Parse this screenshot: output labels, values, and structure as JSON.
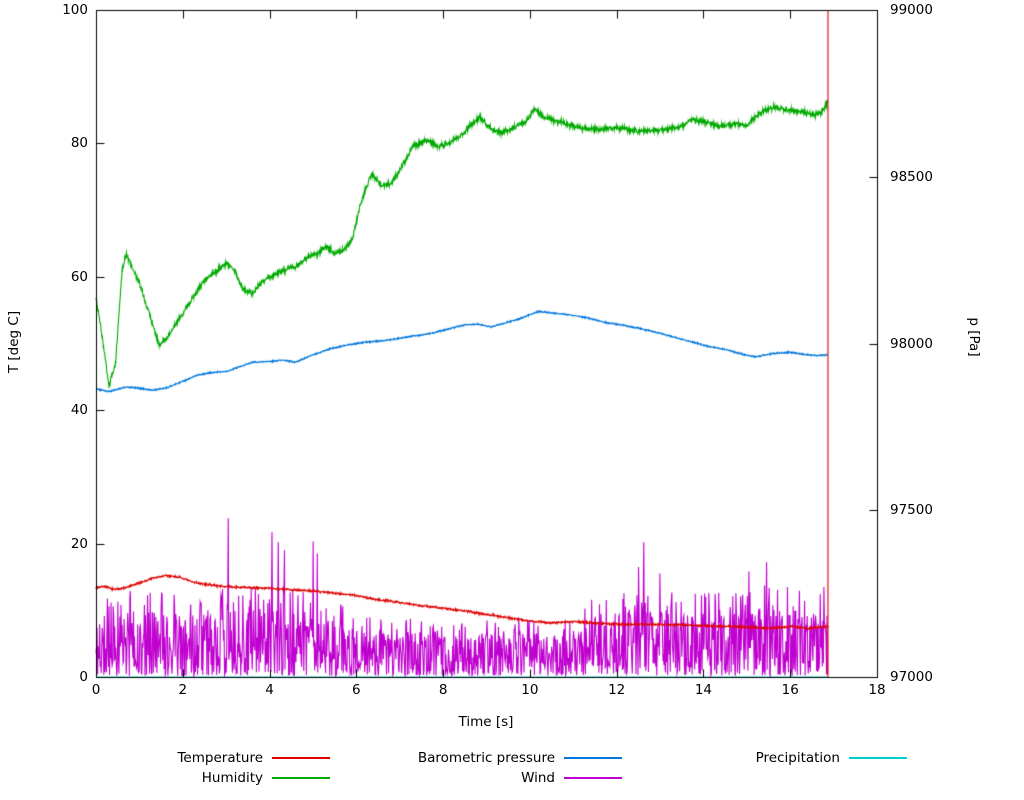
{
  "chart_data": {
    "type": "line",
    "title": "",
    "xlabel": "Time [s]",
    "ylabel": "T [deg C]",
    "y2label": "p [Pa]",
    "xlim": [
      0,
      18
    ],
    "ylim": [
      0,
      100
    ],
    "y2lim": [
      97000,
      99000
    ],
    "xticks": [
      0,
      2,
      4,
      6,
      8,
      10,
      12,
      14,
      16,
      18
    ],
    "yticks": [
      0,
      20,
      40,
      60,
      80,
      100
    ],
    "y2ticks": [
      97000,
      97500,
      98000,
      98500,
      99000
    ],
    "grid": false,
    "legend_position": "below",
    "t_end": 16.87,
    "series": [
      {
        "name": "Precipitation",
        "color": "#00cccc",
        "axis": "y",
        "kind": "anchored",
        "noise": 0,
        "seed": 1,
        "anchors": [
          [
            0,
            0
          ],
          [
            16.87,
            0
          ]
        ]
      },
      {
        "name": "Wind",
        "color": "#c000d0",
        "axis": "y",
        "kind": "noise",
        "seed": 11,
        "step": 0.012,
        "min": 0.2,
        "spike_prob": 0.18,
        "envelope": [
          [
            0,
            12.5
          ],
          [
            1.0,
            13
          ],
          [
            2.8,
            13
          ],
          [
            3.0,
            14
          ],
          [
            5.3,
            13
          ],
          [
            5.8,
            10
          ],
          [
            6.3,
            9
          ],
          [
            11.1,
            9
          ],
          [
            11.6,
            13
          ],
          [
            12.9,
            14
          ],
          [
            13.4,
            12.5
          ],
          [
            14.8,
            13
          ],
          [
            15.6,
            14
          ],
          [
            16.87,
            12.5
          ]
        ],
        "tall_spikes": [
          [
            3.05,
            23.8
          ],
          [
            4.05,
            21.7
          ],
          [
            4.2,
            20.2
          ],
          [
            4.35,
            19.0
          ],
          [
            5.0,
            20.3
          ],
          [
            5.1,
            18.5
          ],
          [
            12.5,
            16.5
          ],
          [
            12.62,
            20.2
          ],
          [
            13.0,
            15.5
          ],
          [
            15.05,
            15.8
          ],
          [
            15.45,
            17.2
          ],
          [
            16.78,
            13.5
          ]
        ]
      },
      {
        "name": "Barometric pressure",
        "color": "#0077dd",
        "axis": "y2",
        "kind": "anchored",
        "noise": 2.5,
        "seed": 5,
        "anchors": [
          [
            0,
            97864
          ],
          [
            0.3,
            97856
          ],
          [
            0.7,
            97870
          ],
          [
            1,
            97866
          ],
          [
            1.3,
            97860
          ],
          [
            1.6,
            97866
          ],
          [
            2,
            97886
          ],
          [
            2.3,
            97904
          ],
          [
            2.6,
            97912
          ],
          [
            3,
            97916
          ],
          [
            3.3,
            97930
          ],
          [
            3.6,
            97944
          ],
          [
            4,
            97946
          ],
          [
            4.3,
            97950
          ],
          [
            4.6,
            97944
          ],
          [
            5,
            97966
          ],
          [
            5.4,
            97984
          ],
          [
            5.8,
            97996
          ],
          [
            6.2,
            98004
          ],
          [
            6.6,
            98008
          ],
          [
            7,
            98016
          ],
          [
            7.4,
            98024
          ],
          [
            7.8,
            98032
          ],
          [
            8.2,
            98046
          ],
          [
            8.5,
            98056
          ],
          [
            8.8,
            98058
          ],
          [
            9.1,
            98050
          ],
          [
            9.4,
            98060
          ],
          [
            9.8,
            98076
          ],
          [
            10.2,
            98096
          ],
          [
            10.5,
            98092
          ],
          [
            10.9,
            98086
          ],
          [
            11.3,
            98078
          ],
          [
            11.7,
            98064
          ],
          [
            12.1,
            98056
          ],
          [
            12.5,
            98046
          ],
          [
            12.9,
            98034
          ],
          [
            13.3,
            98020
          ],
          [
            13.7,
            98006
          ],
          [
            14.1,
            97992
          ],
          [
            14.5,
            97982
          ],
          [
            14.9,
            97968
          ],
          [
            15.2,
            97960
          ],
          [
            15.6,
            97970
          ],
          [
            16,
            97974
          ],
          [
            16.3,
            97968
          ],
          [
            16.6,
            97964
          ],
          [
            16.87,
            97966
          ]
        ]
      },
      {
        "name": "Humidity",
        "color": "#00aa00",
        "axis": "y",
        "kind": "anchored",
        "noise": 0.5,
        "seed": 3,
        "anchors": [
          [
            0,
            57
          ],
          [
            0.12,
            52
          ],
          [
            0.3,
            43.5
          ],
          [
            0.45,
            47
          ],
          [
            0.6,
            61
          ],
          [
            0.7,
            63.5
          ],
          [
            0.85,
            61
          ],
          [
            1.0,
            59
          ],
          [
            1.2,
            55
          ],
          [
            1.45,
            50
          ],
          [
            1.6,
            50.5
          ],
          [
            1.8,
            52.5
          ],
          [
            2.0,
            54.5
          ],
          [
            2.2,
            56.5
          ],
          [
            2.5,
            59.5
          ],
          [
            2.8,
            61
          ],
          [
            3.0,
            62
          ],
          [
            3.2,
            61
          ],
          [
            3.4,
            58
          ],
          [
            3.6,
            57.5
          ],
          [
            3.8,
            59
          ],
          [
            4.0,
            60
          ],
          [
            4.3,
            61
          ],
          [
            4.6,
            61.5
          ],
          [
            4.9,
            63
          ],
          [
            5.1,
            63.5
          ],
          [
            5.3,
            64.5
          ],
          [
            5.5,
            63.5
          ],
          [
            5.7,
            64
          ],
          [
            5.9,
            65.5
          ],
          [
            6.1,
            71
          ],
          [
            6.35,
            75.5
          ],
          [
            6.6,
            73.5
          ],
          [
            6.8,
            74
          ],
          [
            7.0,
            76
          ],
          [
            7.3,
            79.5
          ],
          [
            7.6,
            80.5
          ],
          [
            7.9,
            79.5
          ],
          [
            8.1,
            80
          ],
          [
            8.4,
            81
          ],
          [
            8.6,
            82.5
          ],
          [
            8.85,
            84
          ],
          [
            9.1,
            82.2
          ],
          [
            9.35,
            81.6
          ],
          [
            9.6,
            82.3
          ],
          [
            9.9,
            83.2
          ],
          [
            10.1,
            85.2
          ],
          [
            10.35,
            83.8
          ],
          [
            10.7,
            83.2
          ],
          [
            11.0,
            82.6
          ],
          [
            11.3,
            82.2
          ],
          [
            11.6,
            82.1
          ],
          [
            11.9,
            82.4
          ],
          [
            12.2,
            82.2
          ],
          [
            12.5,
            81.9
          ],
          [
            12.8,
            82.0
          ],
          [
            13.1,
            82.1
          ],
          [
            13.4,
            82.3
          ],
          [
            13.75,
            83.6
          ],
          [
            14.05,
            83.2
          ],
          [
            14.35,
            82.6
          ],
          [
            14.7,
            82.9
          ],
          [
            15.0,
            82.7
          ],
          [
            15.3,
            84.6
          ],
          [
            15.6,
            85.4
          ],
          [
            15.9,
            85.1
          ],
          [
            16.2,
            84.8
          ],
          [
            16.5,
            84.3
          ],
          [
            16.7,
            84.5
          ],
          [
            16.87,
            86.2
          ]
        ]
      },
      {
        "name": "Temperature",
        "color": "#e00000",
        "axis": "y",
        "kind": "anchored",
        "noise": 0.18,
        "seed": 7,
        "anchors": [
          [
            0,
            13.4
          ],
          [
            0.2,
            13.6
          ],
          [
            0.4,
            13.1
          ],
          [
            0.7,
            13.4
          ],
          [
            1.0,
            14.1
          ],
          [
            1.3,
            14.8
          ],
          [
            1.6,
            15.2
          ],
          [
            1.9,
            15.0
          ],
          [
            2.2,
            14.3
          ],
          [
            2.5,
            13.9
          ],
          [
            2.8,
            13.7
          ],
          [
            3.1,
            13.5
          ],
          [
            3.5,
            13.4
          ],
          [
            4.0,
            13.3
          ],
          [
            4.5,
            13.1
          ],
          [
            5.0,
            12.9
          ],
          [
            5.5,
            12.6
          ],
          [
            6.0,
            12.2
          ],
          [
            6.5,
            11.6
          ],
          [
            7.0,
            11.2
          ],
          [
            7.5,
            10.7
          ],
          [
            8.0,
            10.3
          ],
          [
            8.5,
            9.9
          ],
          [
            9.0,
            9.4
          ],
          [
            9.5,
            8.9
          ],
          [
            10.0,
            8.4
          ],
          [
            10.5,
            8.1
          ],
          [
            11.0,
            8.3
          ],
          [
            11.5,
            8.1
          ],
          [
            12.0,
            7.9
          ],
          [
            12.5,
            7.9
          ],
          [
            13.0,
            7.9
          ],
          [
            13.5,
            7.8
          ],
          [
            14.0,
            7.7
          ],
          [
            14.5,
            7.6
          ],
          [
            15.0,
            7.5
          ],
          [
            15.5,
            7.3
          ],
          [
            16.0,
            7.6
          ],
          [
            16.4,
            7.3
          ],
          [
            16.87,
            7.6
          ]
        ]
      }
    ],
    "annotations": [
      {
        "type": "vline",
        "x": 16.87,
        "from": 0,
        "to": 100,
        "color": "#e00000"
      }
    ],
    "legend": {
      "entries": [
        {
          "label": "Temperature",
          "color": "#e00000",
          "row": 0,
          "col": 0
        },
        {
          "label": "Humidity",
          "color": "#00aa00",
          "row": 1,
          "col": 0
        },
        {
          "label": "Barometric pressure",
          "color": "#0077dd",
          "row": 0,
          "col": 1
        },
        {
          "label": "Wind",
          "color": "#c000d0",
          "row": 1,
          "col": 1
        },
        {
          "label": "Precipitation",
          "color": "#00cccc",
          "row": 0,
          "col": 2
        }
      ]
    }
  }
}
